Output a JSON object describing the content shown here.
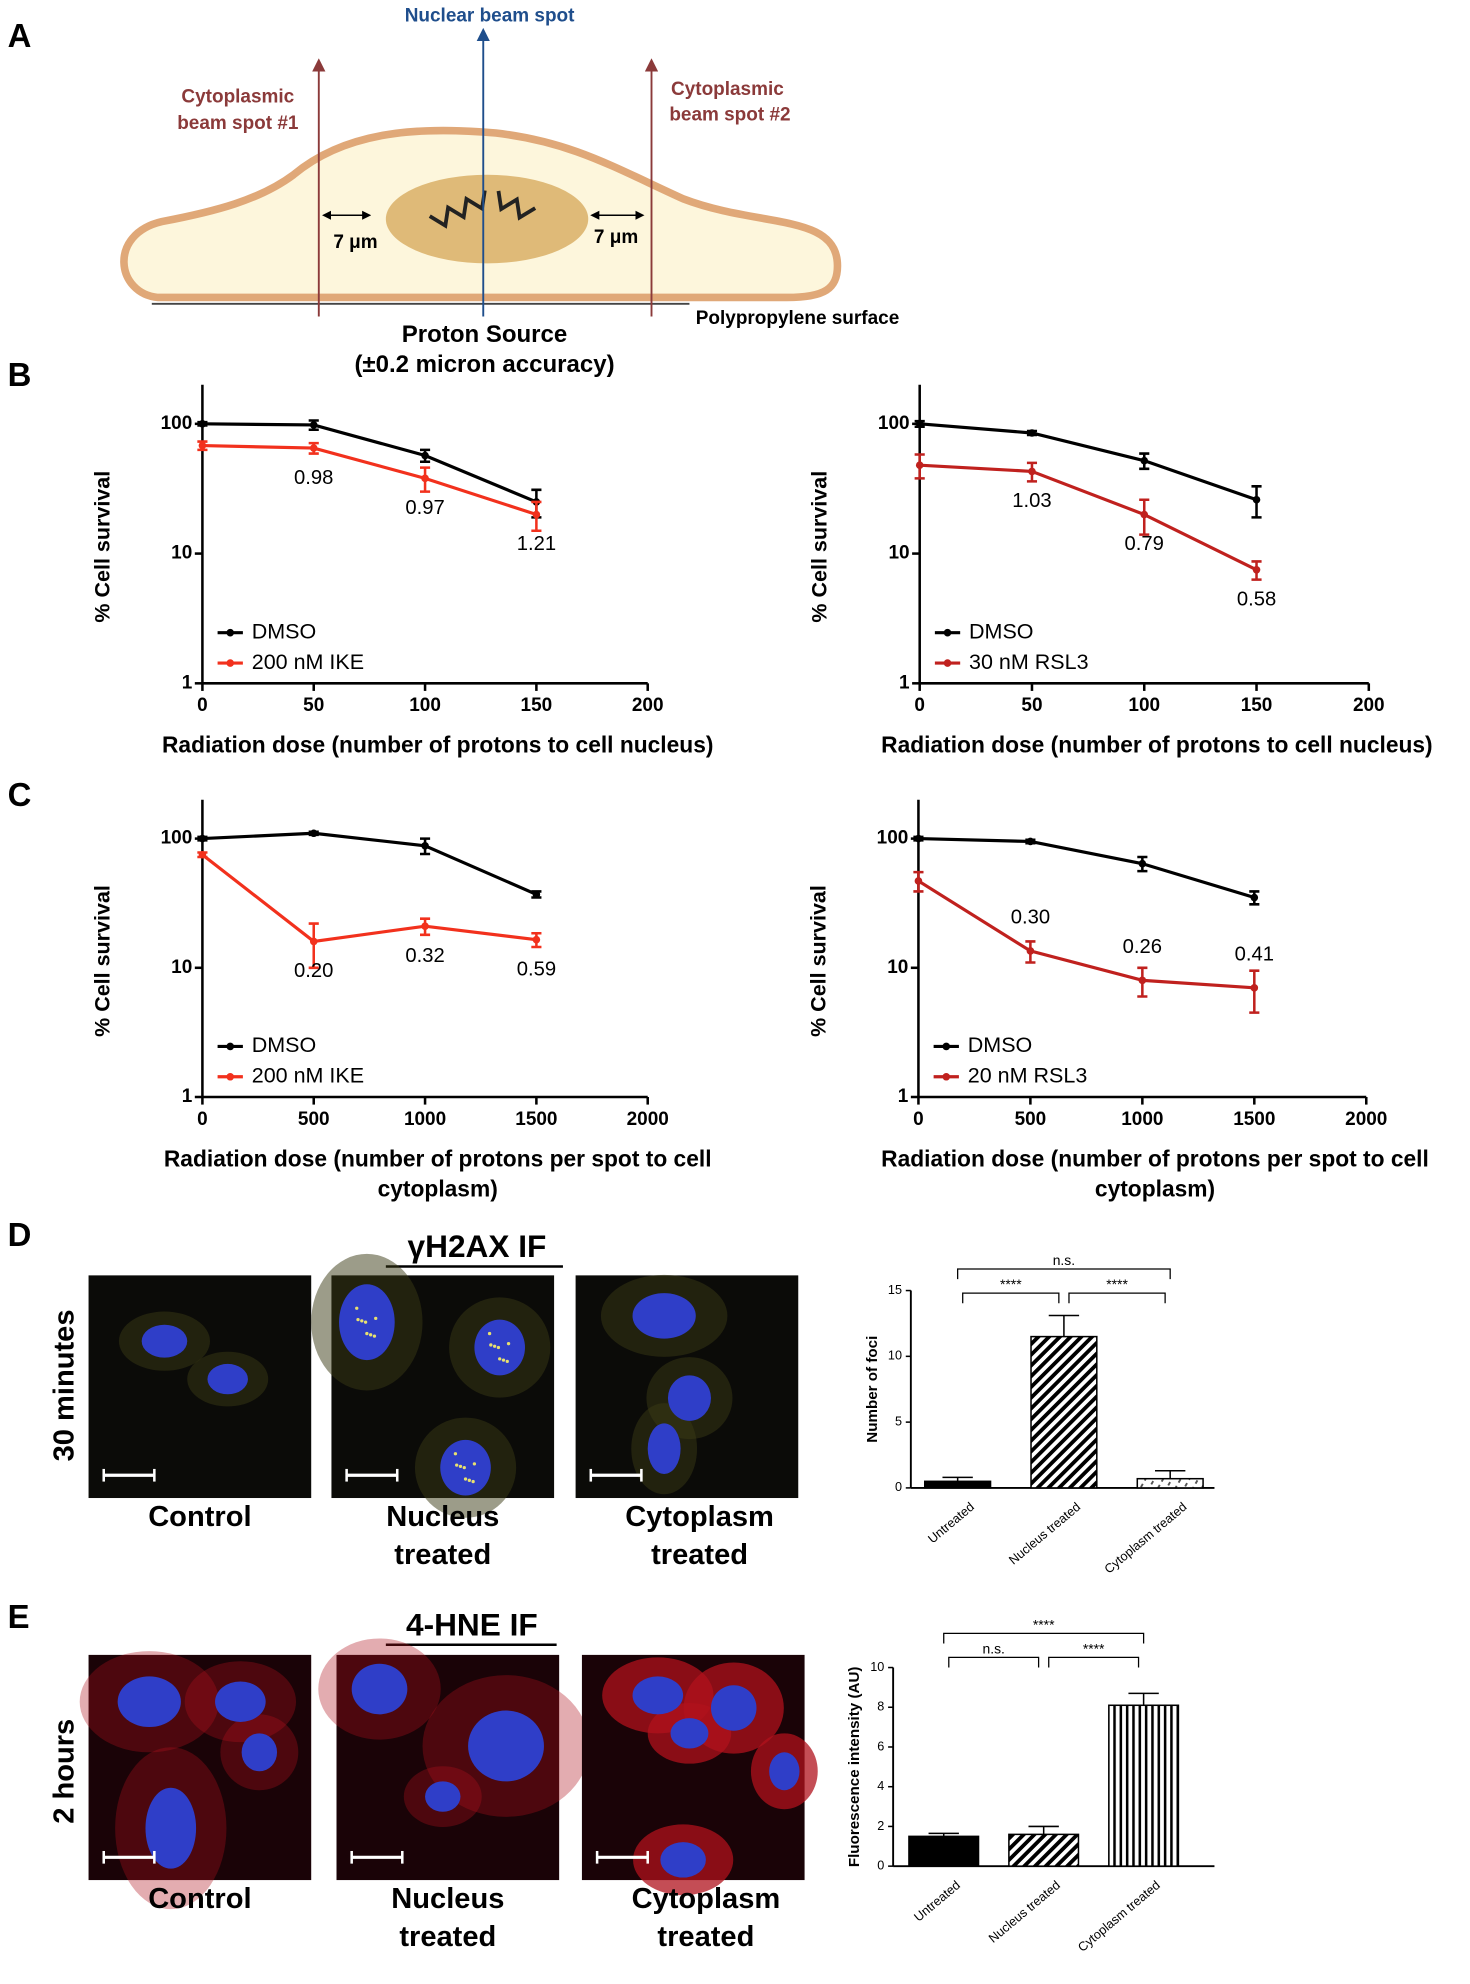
{
  "panel_labels": [
    "A",
    "B",
    "C",
    "D",
    "E"
  ],
  "diagram": {
    "nuclear_beam": "Nuclear beam spot",
    "cyto1": [
      "Cytoplasmic",
      "beam spot #1"
    ],
    "cyto2": [
      "Cytoplasmic",
      "beam spot #2"
    ],
    "distance_left": "7 μm",
    "distance_right": "7 μm",
    "surface": "Polypropylene surface",
    "source": [
      "Proton Source",
      "(±0.2 micron accuracy)"
    ]
  },
  "micrographs": [
    {
      "title": "γH2AX IF",
      "row_label": "30 minutes",
      "captions": [
        [
          "Control"
        ],
        [
          "Nucleus",
          "treated"
        ],
        [
          "Cytoplasm",
          "treated"
        ]
      ]
    },
    {
      "title": "4-HNE IF",
      "row_label": "2 hours",
      "captions": [
        [
          "Control"
        ],
        [
          "Nucleus",
          "treated"
        ],
        [
          "Cytoplasm",
          "treated"
        ]
      ]
    }
  ],
  "chart_data": [
    {
      "type": "line",
      "log_y": true,
      "x": [
        0,
        50,
        100,
        150
      ],
      "xlim": [
        0,
        200
      ],
      "xticks": [
        0,
        50,
        100,
        150,
        200
      ],
      "ylim": [
        1,
        200
      ],
      "yticks": [
        1,
        10,
        100
      ],
      "ylabel": "% Cell survival",
      "xlabel": [
        "Radiation dose (number of protons to cell nucleus)"
      ],
      "legend": "lower left",
      "point_label_side": "below",
      "series": [
        {
          "name": "DMSO",
          "color": "#000000",
          "values": [
            100,
            98,
            57,
            25
          ],
          "errors": [
            3,
            8,
            6,
            6
          ]
        },
        {
          "name": "200 nM IKE",
          "color": "#f2311d",
          "values": [
            68,
            65,
            38,
            20
          ],
          "errors": [
            5,
            6,
            8,
            5
          ],
          "point_labels": [
            null,
            "0.98",
            "0.97",
            "1.21"
          ]
        }
      ]
    },
    {
      "type": "line",
      "log_y": true,
      "x": [
        0,
        50,
        100,
        150
      ],
      "xlim": [
        0,
        200
      ],
      "xticks": [
        0,
        50,
        100,
        150,
        200
      ],
      "ylim": [
        1,
        200
      ],
      "yticks": [
        1,
        10,
        100
      ],
      "ylabel": "% Cell survival",
      "xlabel": [
        "Radiation dose (number of protons to cell nucleus)"
      ],
      "legend": "lower left",
      "point_label_side": "below",
      "series": [
        {
          "name": "DMSO",
          "color": "#000000",
          "values": [
            100,
            85,
            52,
            26
          ],
          "errors": [
            5,
            3,
            7,
            7
          ]
        },
        {
          "name": "30 nM RSL3",
          "color": "#c0211e",
          "values": [
            48,
            43,
            20,
            7.5
          ],
          "errors": [
            10,
            7,
            6,
            1.2
          ],
          "point_labels": [
            null,
            "1.03",
            "0.79",
            "0.58"
          ]
        }
      ]
    },
    {
      "type": "line",
      "log_y": true,
      "x": [
        0,
        500,
        1000,
        1500
      ],
      "xlim": [
        0,
        2000
      ],
      "xticks": [
        0,
        500,
        1000,
        1500,
        2000
      ],
      "ylim": [
        1,
        200
      ],
      "yticks": [
        1,
        10,
        100
      ],
      "ylabel": "% Cell survival",
      "xlabel": [
        "Radiation dose (number of protons per spot to cell",
        "cytoplasm)"
      ],
      "legend": "lower left",
      "point_label_side": "below",
      "series": [
        {
          "name": "DMSO",
          "color": "#000000",
          "values": [
            100,
            110,
            88,
            37
          ],
          "errors": [
            3,
            3,
            12,
            2
          ]
        },
        {
          "name": "200 nM IKE",
          "color": "#f2311d",
          "values": [
            75,
            16,
            21,
            16.5
          ],
          "errors": [
            3,
            6,
            3,
            2
          ],
          "point_labels": [
            null,
            "0.20",
            "0.32",
            "0.59"
          ]
        }
      ]
    },
    {
      "type": "line",
      "log_y": true,
      "x": [
        0,
        500,
        1000,
        1500
      ],
      "xlim": [
        0,
        2000
      ],
      "xticks": [
        0,
        500,
        1000,
        1500,
        2000
      ],
      "ylim": [
        1,
        200
      ],
      "yticks": [
        1,
        10,
        100
      ],
      "ylabel": "% Cell survival",
      "xlabel": [
        "Radiation dose (number of protons per spot to cell",
        "cytoplasm)"
      ],
      "legend": "lower left",
      "point_label_side": "above",
      "series": [
        {
          "name": "DMSO",
          "color": "#000000",
          "values": [
            100,
            95,
            64,
            35
          ],
          "errors": [
            3,
            3,
            8,
            4
          ]
        },
        {
          "name": "20 nM RSL3",
          "color": "#c0211e",
          "values": [
            47,
            13.5,
            8,
            7
          ],
          "errors": [
            8,
            2.5,
            2,
            2.5
          ],
          "point_labels": [
            null,
            "0.30",
            "0.26",
            "0.41"
          ]
        }
      ]
    },
    {
      "type": "bar",
      "categories": [
        "Untreated",
        "Nucleus treated",
        "Cytoplasm treated"
      ],
      "values": [
        0.5,
        11.5,
        0.7
      ],
      "errors": [
        0.3,
        1.6,
        0.6
      ],
      "ylim": [
        0,
        15
      ],
      "yticks": [
        0,
        5,
        10,
        15
      ],
      "ylabel": "Number of foci",
      "color": "#000000",
      "patterns": [
        "solid",
        "diagonal",
        "dotted"
      ],
      "brackets": [
        {
          "from": 0,
          "to": 2,
          "label": "n.s."
        },
        {
          "from": 0,
          "to": 1,
          "label": "****"
        },
        {
          "from": 1,
          "to": 2,
          "label": "****"
        }
      ]
    },
    {
      "type": "bar",
      "categories": [
        "Untreated",
        "Nucleus treated",
        "Cytoplasm treated"
      ],
      "values": [
        1.5,
        1.6,
        8.1
      ],
      "errors": [
        0.15,
        0.4,
        0.6
      ],
      "ylim": [
        0,
        10
      ],
      "yticks": [
        0,
        2,
        4,
        6,
        8,
        10
      ],
      "ylabel": "Fluorescence intensity (AU)",
      "color": "#000000",
      "patterns": [
        "solid",
        "diagonal",
        "vertical"
      ],
      "brackets": [
        {
          "from": 0,
          "to": 2,
          "label": "****"
        },
        {
          "from": 0,
          "to": 1,
          "label": "n.s."
        },
        {
          "from": 1,
          "to": 2,
          "label": "****"
        }
      ]
    }
  ]
}
